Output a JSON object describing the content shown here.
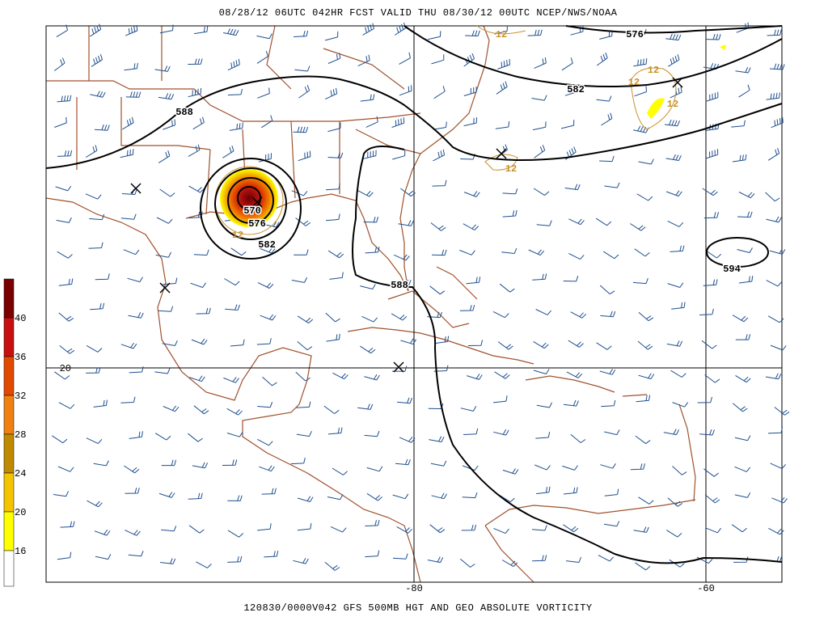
{
  "header": {
    "title": "08/28/12 06UTC  042HR  FCST VALID THU 08/30/12 00UTC  NCEP/NWS/NOAA"
  },
  "footer": {
    "caption": "120830/0000V042 GFS 500MB HGT AND GEO ABSOLUTE VORTICITY"
  },
  "colorbar": {
    "labels": [
      "40",
      "36",
      "32",
      "28",
      "24",
      "20",
      "16"
    ]
  },
  "grid_labels": {
    "lat": [
      "20"
    ],
    "lon": [
      "-80",
      "-60"
    ]
  },
  "height_labels": [
    "576",
    "582",
    "588",
    "570",
    "576",
    "582",
    "588",
    "594"
  ],
  "vorticity_labels": [
    "12",
    "12",
    "12",
    "12",
    "12",
    "12"
  ]
}
